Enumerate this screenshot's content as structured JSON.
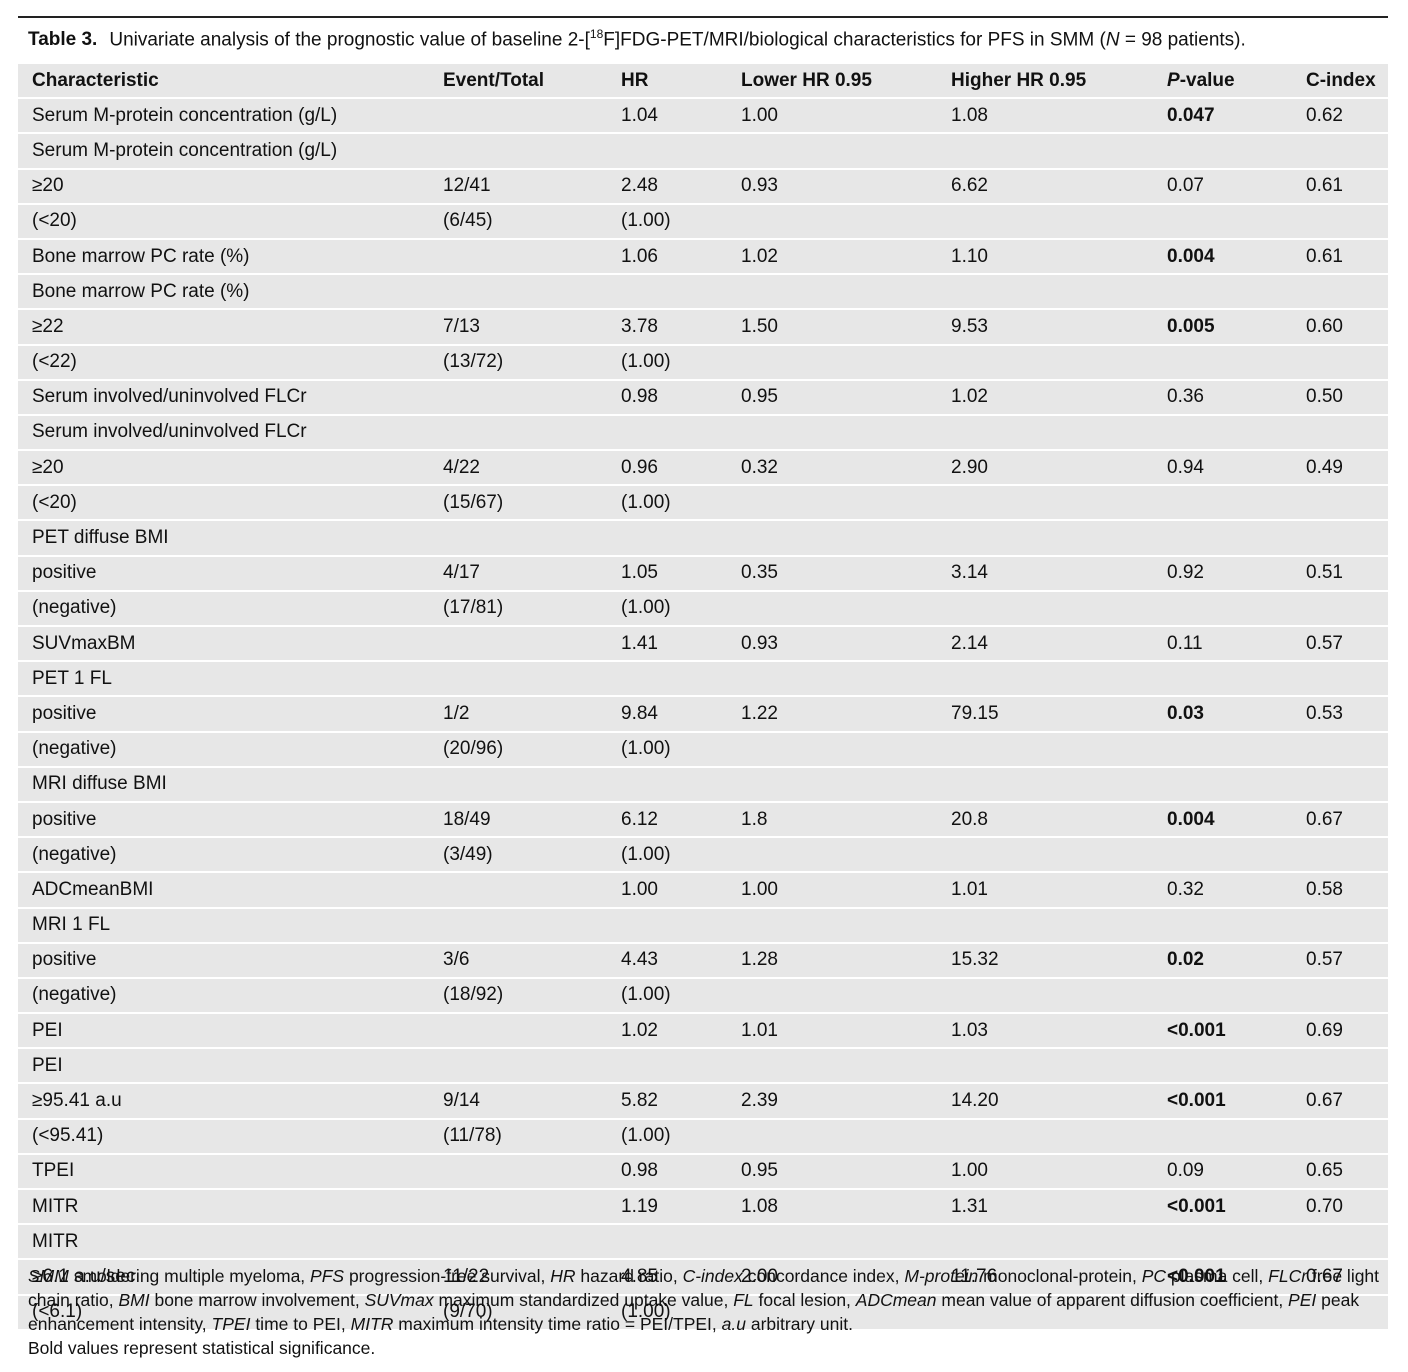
{
  "caption": {
    "label": "Table 3.",
    "text_before_sup": "Univariate analysis of the prognostic value of baseline 2-[",
    "sup": "18",
    "text_after_sup": "F]FDG-PET/MRI/biological characteristics for PFS in SMM (",
    "n_var": "N",
    "n_text": " = 98 patients)."
  },
  "table": {
    "headers": {
      "characteristic": "Characteristic",
      "event_total": "Event/Total",
      "hr": "HR",
      "lower": "Lower HR 0.95",
      "higher": "Higher HR 0.95",
      "p_letter": "P",
      "p_rest": "-value",
      "cindex": "C-index"
    },
    "rows": [
      {
        "c": "Serum M-protein concentration (g/L)",
        "e": "",
        "hr": "1.04",
        "lo": "1.00",
        "hi": "1.08",
        "p": "0.047",
        "sig": true,
        "ci": "0.62"
      },
      {
        "c": "Serum M-protein concentration (g/L)",
        "e": "",
        "hr": "",
        "lo": "",
        "hi": "",
        "p": "",
        "sig": false,
        "ci": ""
      },
      {
        "c": "≥20",
        "e": "12/41",
        "hr": "2.48",
        "lo": "0.93",
        "hi": "6.62",
        "p": "0.07",
        "sig": false,
        "ci": "0.61"
      },
      {
        "c": "(<20)",
        "e": "(6/45)",
        "hr": "(1.00)",
        "lo": "",
        "hi": "",
        "p": "",
        "sig": false,
        "ci": ""
      },
      {
        "c": "Bone marrow PC rate (%)",
        "e": "",
        "hr": "1.06",
        "lo": "1.02",
        "hi": "1.10",
        "p": "0.004",
        "sig": true,
        "ci": "0.61"
      },
      {
        "c": "Bone marrow PC rate (%)",
        "e": "",
        "hr": "",
        "lo": "",
        "hi": "",
        "p": "",
        "sig": false,
        "ci": ""
      },
      {
        "c": "≥22",
        "e": "7/13",
        "hr": "3.78",
        "lo": "1.50",
        "hi": "9.53",
        "p": "0.005",
        "sig": true,
        "ci": "0.60"
      },
      {
        "c": "(<22)",
        "e": "(13/72)",
        "hr": "(1.00)",
        "lo": "",
        "hi": "",
        "p": "",
        "sig": false,
        "ci": ""
      },
      {
        "c": "Serum involved/uninvolved FLCr",
        "e": "",
        "hr": "0.98",
        "lo": "0.95",
        "hi": "1.02",
        "p": "0.36",
        "sig": false,
        "ci": "0.50"
      },
      {
        "c": "Serum involved/uninvolved FLCr",
        "e": "",
        "hr": "",
        "lo": "",
        "hi": "",
        "p": "",
        "sig": false,
        "ci": ""
      },
      {
        "c": "≥20",
        "e": "4/22",
        "hr": "0.96",
        "lo": "0.32",
        "hi": "2.90",
        "p": "0.94",
        "sig": false,
        "ci": "0.49"
      },
      {
        "c": "(<20)",
        "e": "(15/67)",
        "hr": "(1.00)",
        "lo": "",
        "hi": "",
        "p": "",
        "sig": false,
        "ci": ""
      },
      {
        "c": "PET diffuse BMI",
        "e": "",
        "hr": "",
        "lo": "",
        "hi": "",
        "p": "",
        "sig": false,
        "ci": ""
      },
      {
        "c": "positive",
        "e": "4/17",
        "hr": "1.05",
        "lo": "0.35",
        "hi": "3.14",
        "p": "0.92",
        "sig": false,
        "ci": "0.51"
      },
      {
        "c": "(negative)",
        "e": "(17/81)",
        "hr": "(1.00)",
        "lo": "",
        "hi": "",
        "p": "",
        "sig": false,
        "ci": ""
      },
      {
        "c": "SUVmaxBM",
        "e": "",
        "hr": "1.41",
        "lo": "0.93",
        "hi": "2.14",
        "p": "0.11",
        "sig": false,
        "ci": "0.57"
      },
      {
        "c": "PET 1 FL",
        "e": "",
        "hr": "",
        "lo": "",
        "hi": "",
        "p": "",
        "sig": false,
        "ci": ""
      },
      {
        "c": "positive",
        "e": "1/2",
        "hr": "9.84",
        "lo": "1.22",
        "hi": "79.15",
        "p": "0.03",
        "sig": true,
        "ci": "0.53"
      },
      {
        "c": "(negative)",
        "e": "(20/96)",
        "hr": "(1.00)",
        "lo": "",
        "hi": "",
        "p": "",
        "sig": false,
        "ci": ""
      },
      {
        "c": "MRI diffuse BMI",
        "e": "",
        "hr": "",
        "lo": "",
        "hi": "",
        "p": "",
        "sig": false,
        "ci": ""
      },
      {
        "c": "positive",
        "e": "18/49",
        "hr": "6.12",
        "lo": "1.8",
        "hi": "20.8",
        "p": "0.004",
        "sig": true,
        "ci": "0.67"
      },
      {
        "c": "(negative)",
        "e": "(3/49)",
        "hr": "(1.00)",
        "lo": "",
        "hi": "",
        "p": "",
        "sig": false,
        "ci": ""
      },
      {
        "c": "ADCmeanBMI",
        "e": "",
        "hr": "1.00",
        "lo": "1.00",
        "hi": "1.01",
        "p": "0.32",
        "sig": false,
        "ci": "0.58"
      },
      {
        "c": "MRI 1 FL",
        "e": "",
        "hr": "",
        "lo": "",
        "hi": "",
        "p": "",
        "sig": false,
        "ci": ""
      },
      {
        "c": "positive",
        "e": "3/6",
        "hr": "4.43",
        "lo": "1.28",
        "hi": "15.32",
        "p": "0.02",
        "sig": true,
        "ci": "0.57"
      },
      {
        "c": "(negative)",
        "e": "(18/92)",
        "hr": "(1.00)",
        "lo": "",
        "hi": "",
        "p": "",
        "sig": false,
        "ci": ""
      },
      {
        "c": "PEI",
        "e": "",
        "hr": "1.02",
        "lo": "1.01",
        "hi": "1.03",
        "p": "<0.001",
        "sig": true,
        "ci": "0.69"
      },
      {
        "c": "PEI",
        "e": "",
        "hr": "",
        "lo": "",
        "hi": "",
        "p": "",
        "sig": false,
        "ci": ""
      },
      {
        "c": "≥95.41 a.u",
        "e": "9/14",
        "hr": "5.82",
        "lo": "2.39",
        "hi": "14.20",
        "p": "<0.001",
        "sig": true,
        "ci": "0.67"
      },
      {
        "c": "(<95.41)",
        "e": "(11/78)",
        "hr": "(1.00)",
        "lo": "",
        "hi": "",
        "p": "",
        "sig": false,
        "ci": ""
      },
      {
        "c": "TPEI",
        "e": "",
        "hr": "0.98",
        "lo": "0.95",
        "hi": "1.00",
        "p": "0.09",
        "sig": false,
        "ci": "0.65"
      },
      {
        "c": "MITR",
        "e": "",
        "hr": "1.19",
        "lo": "1.08",
        "hi": "1.31",
        "p": "<0.001",
        "sig": true,
        "ci": "0.70"
      },
      {
        "c": "MITR",
        "e": "",
        "hr": "",
        "lo": "",
        "hi": "",
        "p": "",
        "sig": false,
        "ci": ""
      },
      {
        "c": "≥6.1 a.u/sec",
        "e": "11/22",
        "hr": "4.85",
        "lo": "2.00",
        "hi": "11.76",
        "p": "<0.001",
        "sig": true,
        "ci": "0.67"
      },
      {
        "c": "(<6.1)",
        "e": "(9/70)",
        "hr": "(1.00)",
        "lo": "",
        "hi": "",
        "p": "",
        "sig": false,
        "ci": ""
      }
    ]
  },
  "footnote": {
    "abbreviations": [
      {
        "abbr": "SMM",
        "def": " smoldering multiple myeloma, "
      },
      {
        "abbr": "PFS",
        "def": " progression-free survival, "
      },
      {
        "abbr": "HR",
        "def": " hazard ratio, "
      },
      {
        "abbr": "C-index",
        "def": " concordance index, "
      },
      {
        "abbr": "M-protein",
        "def": " monoclonal-protein, "
      },
      {
        "abbr": "PC",
        "def": " plasma cell, "
      },
      {
        "abbr": "FLCr",
        "def": " free light chain ratio, "
      },
      {
        "abbr": "BMI",
        "def": " bone marrow involvement, "
      },
      {
        "abbr": "SUVmax",
        "def": " maximum standardized uptake value, "
      },
      {
        "abbr": "FL",
        "def": " focal lesion, "
      },
      {
        "abbr": "ADCmean",
        "def": " mean value of apparent diffusion coefficient, "
      },
      {
        "abbr": "PEI",
        "def": " peak enhancement intensity, "
      },
      {
        "abbr": "TPEI",
        "def": " time to PEI, "
      },
      {
        "abbr": "MITR",
        "def": " maximum intensity time ratio = PEI/TPEI, "
      },
      {
        "abbr": "a.u",
        "def": " arbitrary unit."
      }
    ],
    "bold_note": "Bold values represent statistical significance."
  }
}
